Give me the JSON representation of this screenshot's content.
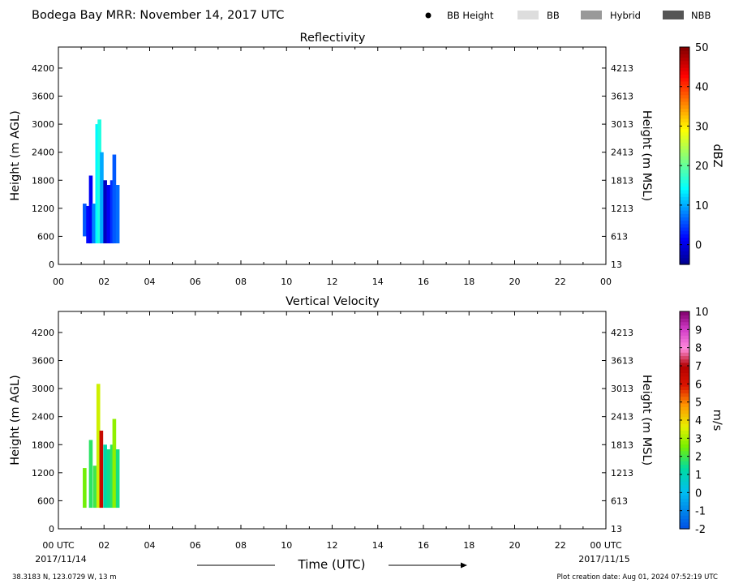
{
  "header": {
    "title": "Bodega Bay MRR:  November 14, 2017 UTC",
    "legend": [
      {
        "label": "BB Height",
        "kind": "dot",
        "color": "#000000"
      },
      {
        "label": "BB",
        "kind": "box",
        "color": "#dddddd"
      },
      {
        "label": "Hybrid",
        "kind": "box",
        "color": "#999999"
      },
      {
        "label": "NBB",
        "kind": "box",
        "color": "#555555"
      }
    ]
  },
  "chart_data": [
    {
      "type": "heatmap",
      "title": "Reflectivity",
      "ylabel": "Height (m AGL)",
      "y2label": "Height (m MSL)",
      "x_ticks": [
        "00",
        "02",
        "04",
        "06",
        "08",
        "10",
        "12",
        "14",
        "16",
        "18",
        "20",
        "22",
        "00"
      ],
      "y_ticks": [
        0,
        600,
        1200,
        1800,
        2400,
        3000,
        3600,
        4200
      ],
      "y2_ticks": [
        13,
        613,
        1213,
        1813,
        2413,
        3013,
        3613,
        4213
      ],
      "xlim": [
        0,
        24
      ],
      "ylim": [
        0,
        4650
      ],
      "colorbar": {
        "label": "dBZ",
        "ticks": [
          0,
          10,
          20,
          30,
          40,
          50
        ],
        "range": [
          -5,
          50
        ]
      },
      "columns": [
        {
          "t": 1.15,
          "bottom": 600,
          "top": 1300,
          "value": 6
        },
        {
          "t": 1.3,
          "bottom": 450,
          "top": 1250,
          "value": 2
        },
        {
          "t": 1.42,
          "bottom": 450,
          "top": 1900,
          "value": 1
        },
        {
          "t": 1.55,
          "bottom": 450,
          "top": 1300,
          "value": 8
        },
        {
          "t": 1.7,
          "bottom": 450,
          "top": 3000,
          "value": 14
        },
        {
          "t": 1.8,
          "bottom": 450,
          "top": 3100,
          "value": 16
        },
        {
          "t": 1.9,
          "bottom": 450,
          "top": 2400,
          "value": 10
        },
        {
          "t": 2.05,
          "bottom": 450,
          "top": 1800,
          "value": -2
        },
        {
          "t": 2.2,
          "bottom": 450,
          "top": 1700,
          "value": 1
        },
        {
          "t": 2.35,
          "bottom": 450,
          "top": 1800,
          "value": 4
        },
        {
          "t": 2.45,
          "bottom": 450,
          "top": 2350,
          "value": 6
        },
        {
          "t": 2.6,
          "bottom": 450,
          "top": 1700,
          "value": 7
        }
      ]
    },
    {
      "type": "heatmap",
      "title": "Vertical Velocity",
      "ylabel": "Height (m AGL)",
      "y2label": "Height (m MSL)",
      "x_ticks": [
        "00 UTC",
        "02",
        "04",
        "06",
        "08",
        "10",
        "12",
        "14",
        "16",
        "18",
        "20",
        "22",
        "00 UTC"
      ],
      "x_subticks_first": "2017/11/14",
      "x_subticks_last": "2017/11/15",
      "xlabel": "Time (UTC)",
      "y_ticks": [
        0,
        600,
        1200,
        1800,
        2400,
        3000,
        3600,
        4200
      ],
      "y2_ticks": [
        13,
        613,
        1213,
        1813,
        2413,
        3013,
        3613,
        4213
      ],
      "xlim": [
        0,
        24
      ],
      "ylim": [
        0,
        4650
      ],
      "colorbar": {
        "label": "m/s",
        "ticks": [
          -2,
          -1,
          0,
          1,
          2,
          3,
          4,
          5,
          6,
          7,
          8,
          9,
          10
        ],
        "range": [
          -2,
          10
        ]
      },
      "columns": [
        {
          "t": 1.15,
          "bottom": 450,
          "top": 1300,
          "value": 2.5
        },
        {
          "t": 1.42,
          "bottom": 450,
          "top": 1900,
          "value": 1.8
        },
        {
          "t": 1.6,
          "bottom": 450,
          "top": 1350,
          "value": 2.0
        },
        {
          "t": 1.75,
          "bottom": 450,
          "top": 3100,
          "value": 3.4
        },
        {
          "t": 1.88,
          "bottom": 450,
          "top": 2100,
          "value": 6.5
        },
        {
          "t": 2.05,
          "bottom": 450,
          "top": 1800,
          "value": 1.2
        },
        {
          "t": 2.2,
          "bottom": 450,
          "top": 1700,
          "value": 1.5
        },
        {
          "t": 2.35,
          "bottom": 450,
          "top": 1800,
          "value": 1.8
        },
        {
          "t": 2.45,
          "bottom": 450,
          "top": 2350,
          "value": 2.8
        },
        {
          "t": 2.6,
          "bottom": 450,
          "top": 1700,
          "value": 1.6
        }
      ]
    }
  ],
  "footer": {
    "location": "38.3183 N, 123.0729 W, 13 m",
    "created": "Plot creation date: Aug 01, 2024 07:52:19 UTC"
  }
}
